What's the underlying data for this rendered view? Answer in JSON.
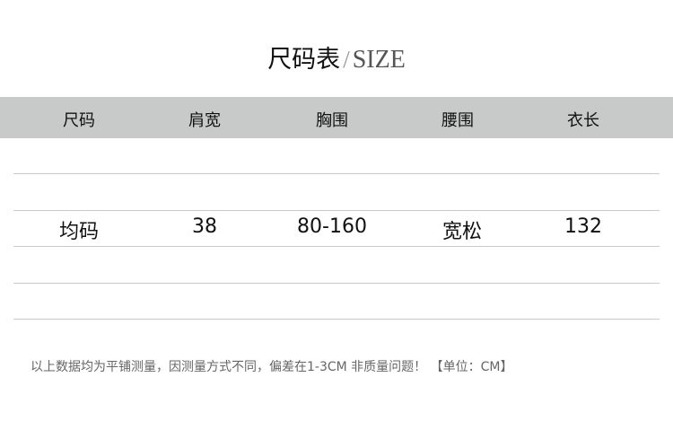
{
  "title": {
    "cn": "尺码表",
    "slash": "/",
    "en": "SIZE"
  },
  "table": {
    "headers": [
      "尺码",
      "肩宽",
      "胸围",
      "腰围",
      "衣长"
    ],
    "rows": [
      [
        "均码",
        "38",
        "80-160",
        "宽松",
        "132"
      ]
    ]
  },
  "note": "以上数据均为平铺测量，因测量方式不同，偏差在1-3CM 非质量问题！ 【单位：CM】",
  "colors": {
    "header_bg": "#c8cac9",
    "line": "#c9c9c9"
  }
}
